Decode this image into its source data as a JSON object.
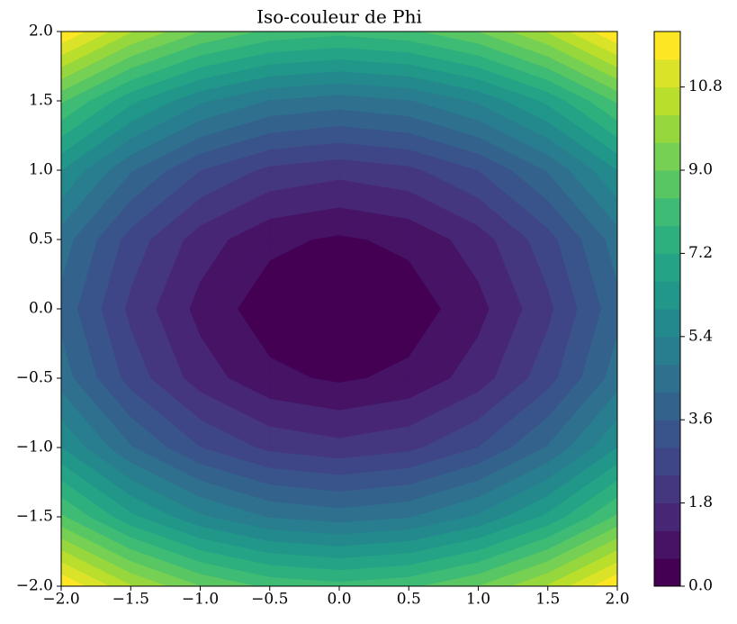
{
  "chart_data": {
    "type": "contour",
    "title": "Iso-couleur de Phi",
    "colormap": "viridis",
    "x": [
      -2,
      -1.5,
      -1,
      -0.5,
      0,
      0.5,
      1,
      1.5,
      2
    ],
    "y": [
      -2,
      -1.5,
      -1,
      -0.5,
      0,
      0.5,
      1,
      1.5,
      2
    ],
    "z": [
      [
        12,
        10.25,
        9,
        8.25,
        8,
        8.25,
        9,
        10.25,
        12
      ],
      [
        8.5,
        6.75,
        5.5,
        4.75,
        4.5,
        4.75,
        5.5,
        6.75,
        8.5
      ],
      [
        6,
        4.25,
        3,
        2.25,
        2,
        2.25,
        3,
        4.25,
        6
      ],
      [
        4.5,
        2.75,
        1.5,
        0.75,
        0.5,
        0.75,
        1.5,
        2.75,
        4.5
      ],
      [
        4,
        2.25,
        1,
        0.25,
        0,
        0.25,
        1,
        2.25,
        4
      ],
      [
        4.5,
        2.75,
        1.5,
        0.75,
        0.5,
        0.75,
        1.5,
        2.75,
        4.5
      ],
      [
        6,
        4.25,
        3,
        2.25,
        2,
        2.25,
        3,
        4.25,
        6
      ],
      [
        8.5,
        6.75,
        5.5,
        4.75,
        4.5,
        4.75,
        5.5,
        6.75,
        8.5
      ],
      [
        12,
        10.25,
        9,
        8.25,
        8,
        8.25,
        9,
        10.25,
        12
      ]
    ],
    "levels": [
      0,
      0.6,
      1.2,
      1.8,
      2.4,
      3,
      3.6,
      4.2,
      4.8,
      5.4,
      6,
      6.6,
      7.2,
      7.8,
      8.4,
      9,
      9.6,
      10.2,
      10.8,
      11.4,
      12
    ],
    "xlim": [
      -2,
      2
    ],
    "ylim": [
      -2,
      2
    ],
    "xticks": [
      {
        "value": -2,
        "label": "−2.0"
      },
      {
        "value": -1.5,
        "label": "−1.5"
      },
      {
        "value": -1,
        "label": "−1.0"
      },
      {
        "value": -0.5,
        "label": "−0.5"
      },
      {
        "value": 0,
        "label": "0.0"
      },
      {
        "value": 0.5,
        "label": "0.5"
      },
      {
        "value": 1,
        "label": "1.0"
      },
      {
        "value": 1.5,
        "label": "1.5"
      },
      {
        "value": 2,
        "label": "2.0"
      }
    ],
    "yticks": [
      {
        "value": -2,
        "label": "−2.0"
      },
      {
        "value": -1.5,
        "label": "−1.5"
      },
      {
        "value": -1,
        "label": "−1.0"
      },
      {
        "value": -0.5,
        "label": "−0.5"
      },
      {
        "value": 0,
        "label": "0.0"
      },
      {
        "value": 0.5,
        "label": "0.5"
      },
      {
        "value": 1,
        "label": "1.0"
      },
      {
        "value": 1.5,
        "label": "1.5"
      },
      {
        "value": 2,
        "label": "2.0"
      }
    ],
    "colorbar_lim": [
      0,
      12
    ],
    "colorbar_ticks": [
      {
        "value": 0,
        "label": "0.0"
      },
      1.8,
      3.6,
      5.4,
      7.2,
      {
        "value": 9,
        "label": "9.0"
      },
      10.8
    ]
  }
}
